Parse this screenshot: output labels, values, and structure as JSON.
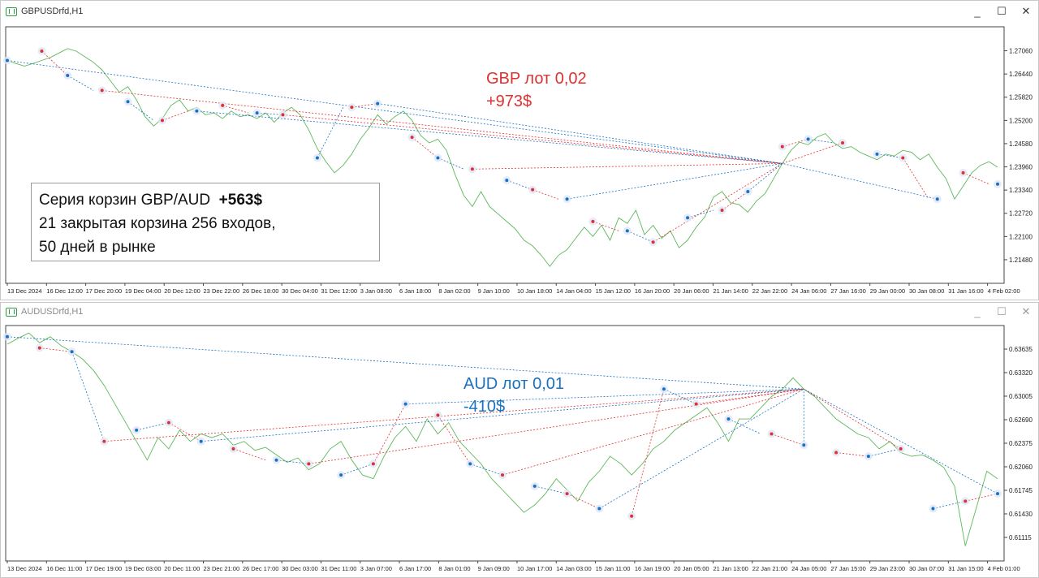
{
  "windows": [
    {
      "title": "GBPUSDrfd,H1",
      "active": true,
      "controls": [
        "_",
        "☐",
        "✕"
      ],
      "chart_data": {
        "type": "line",
        "symbol": "GBPUSDrfd",
        "timeframe": "H1",
        "ylim": [
          1.2085,
          1.277
        ],
        "y_ticks": [
          "1.27060",
          "1.26440",
          "1.25820",
          "1.25200",
          "1.24580",
          "1.23960",
          "1.23340",
          "1.22720",
          "1.22100",
          "1.21480"
        ],
        "x_ticks": [
          "13 Dec 2024",
          "16 Dec 12:00",
          "17 Dec 20:00",
          "19 Dec 04:00",
          "20 Dec 12:00",
          "23 Dec 22:00",
          "26 Dec 18:00",
          "30 Dec 04:00",
          "31 Dec 12:00",
          "3 Jan 08:00",
          "6 Jan 18:00",
          "8 Jan 02:00",
          "9 Jan 10:00",
          "10 Jan 18:00",
          "14 Jan 04:00",
          "15 Jan 12:00",
          "16 Jan 20:00",
          "20 Jan 06:00",
          "21 Jan 14:00",
          "22 Jan 22:00",
          "24 Jan 06:00",
          "27 Jan 16:00",
          "29 Jan 00:00",
          "30 Jan 08:00",
          "31 Jan 16:00",
          "4 Feb 02:00"
        ],
        "price": [
          1.268,
          1.2672,
          1.2665,
          1.2672,
          1.268,
          1.2688,
          1.27,
          1.2712,
          1.2705,
          1.269,
          1.2675,
          1.2655,
          1.2625,
          1.2595,
          1.261,
          1.2575,
          1.253,
          1.2505,
          1.2525,
          1.256,
          1.2575,
          1.2545,
          1.2555,
          1.2535,
          1.254,
          1.2525,
          1.2545,
          1.253,
          1.2535,
          1.2525,
          1.254,
          1.2515,
          1.254,
          1.2555,
          1.2535,
          1.2495,
          1.2445,
          1.241,
          1.238,
          1.24,
          1.243,
          1.247,
          1.25,
          1.2535,
          1.251,
          1.253,
          1.2545,
          1.252,
          1.248,
          1.246,
          1.247,
          1.244,
          1.2375,
          1.232,
          1.229,
          1.233,
          1.229,
          1.227,
          1.225,
          1.223,
          1.22,
          1.2185,
          1.216,
          1.213,
          1.216,
          1.2175,
          1.2205,
          1.2235,
          1.221,
          1.224,
          1.22,
          1.226,
          1.2245,
          1.228,
          1.2215,
          1.224,
          1.2205,
          1.2225,
          1.218,
          1.22,
          1.2235,
          1.2262,
          1.2315,
          1.233,
          1.23,
          1.2295,
          1.2275,
          1.2305,
          1.2325,
          1.2365,
          1.2405,
          1.244,
          1.2462,
          1.2455,
          1.2475,
          1.2485,
          1.246,
          1.2445,
          1.245,
          1.2435,
          1.2425,
          1.2415,
          1.243,
          1.2425,
          1.244,
          1.2435,
          1.2415,
          1.243,
          1.2395,
          1.2365,
          1.231,
          1.2345,
          1.238,
          1.24,
          1.241,
          1.2395
        ],
        "basket_levels": [
          1.268,
          1.2705,
          1.264,
          1.26,
          1.257,
          1.252,
          1.2545,
          1.256,
          1.254,
          1.2535,
          1.242,
          1.2555,
          1.2565,
          1.2475,
          1.242,
          1.239,
          1.236,
          1.2335,
          1.231,
          1.225,
          1.2225,
          1.2195,
          1.226,
          1.228,
          1.233,
          1.245,
          1.247,
          1.246,
          1.243,
          1.242,
          1.231,
          1.238,
          1.235
        ],
        "buy_color": "#1971c2",
        "sell_color": "#e03131",
        "price_color": "#5cb85c"
      },
      "annotation": {
        "line1": "GBP лот 0,02",
        "line2": "+973$"
      },
      "summary": {
        "line1_text": "Серия корзин GBP/AUD",
        "line1_value": "+563$",
        "line2": "21 закрытая корзина 256 входов,",
        "line3": "50 дней в рынке"
      }
    },
    {
      "title": "AUDUSDrfd,H1",
      "active": false,
      "controls": [
        "_",
        "☐",
        "✕"
      ],
      "chart_data": {
        "type": "line",
        "symbol": "AUDUSDrfd",
        "timeframe": "H1",
        "ylim": [
          0.608,
          0.6395
        ],
        "y_ticks": [
          "0.63635",
          "0.63320",
          "0.63005",
          "0.62690",
          "0.62375",
          "0.62060",
          "0.61745",
          "0.61430",
          "0.61115"
        ],
        "x_ticks": [
          "13 Dec 2024",
          "16 Dec 11:00",
          "17 Dec 19:00",
          "19 Dec 03:00",
          "20 Dec 11:00",
          "23 Dec 21:00",
          "26 Dec 17:00",
          "30 Dec 03:00",
          "31 Dec 11:00",
          "3 Jan 07:00",
          "6 Jan 17:00",
          "8 Jan 01:00",
          "9 Jan 09:00",
          "10 Jan 17:00",
          "14 Jan 03:00",
          "15 Jan 11:00",
          "16 Jan 19:00",
          "20 Jan 05:00",
          "21 Jan 13:00",
          "22 Jan 21:00",
          "24 Jan 05:00",
          "27 Jan 15:00",
          "29 Jan 23:00",
          "30 Jan 07:00",
          "31 Jan 15:00",
          "4 Feb 01:00"
        ],
        "price": [
          0.637,
          0.6378,
          0.6385,
          0.6372,
          0.638,
          0.6368,
          0.636,
          0.635,
          0.6335,
          0.6315,
          0.629,
          0.6265,
          0.624,
          0.6215,
          0.6245,
          0.623,
          0.6255,
          0.624,
          0.625,
          0.6245,
          0.625,
          0.6235,
          0.624,
          0.6228,
          0.6232,
          0.6222,
          0.6212,
          0.6218,
          0.6202,
          0.621,
          0.623,
          0.624,
          0.6215,
          0.6195,
          0.619,
          0.622,
          0.6245,
          0.626,
          0.624,
          0.627,
          0.625,
          0.6265,
          0.624,
          0.6225,
          0.621,
          0.619,
          0.6175,
          0.616,
          0.6145,
          0.6155,
          0.617,
          0.619,
          0.6175,
          0.616,
          0.6185,
          0.62,
          0.622,
          0.621,
          0.6195,
          0.621,
          0.623,
          0.624,
          0.6255,
          0.6265,
          0.6275,
          0.6285,
          0.6265,
          0.624,
          0.627,
          0.627,
          0.6285,
          0.63,
          0.631,
          0.6325,
          0.631,
          0.63,
          0.6285,
          0.627,
          0.626,
          0.625,
          0.6245,
          0.623,
          0.624,
          0.6225,
          0.622,
          0.6222,
          0.6215,
          0.6205,
          0.618,
          0.61,
          0.615,
          0.62,
          0.619
        ],
        "basket_levels": [
          0.638,
          0.6365,
          0.636,
          0.624,
          0.6255,
          0.6265,
          0.624,
          0.623,
          0.6215,
          0.621,
          0.6195,
          0.621,
          0.629,
          0.6275,
          0.621,
          0.6195,
          0.618,
          0.617,
          0.615,
          0.614,
          0.631,
          0.629,
          0.627,
          0.625,
          0.6235,
          0.6225,
          0.622,
          0.623,
          0.615,
          0.616,
          0.617
        ],
        "buy_color": "#1971c2",
        "sell_color": "#e03131",
        "price_color": "#5cb85c"
      },
      "annotation": {
        "line1": "AUD лот 0,01",
        "line2": "-410$"
      }
    }
  ]
}
